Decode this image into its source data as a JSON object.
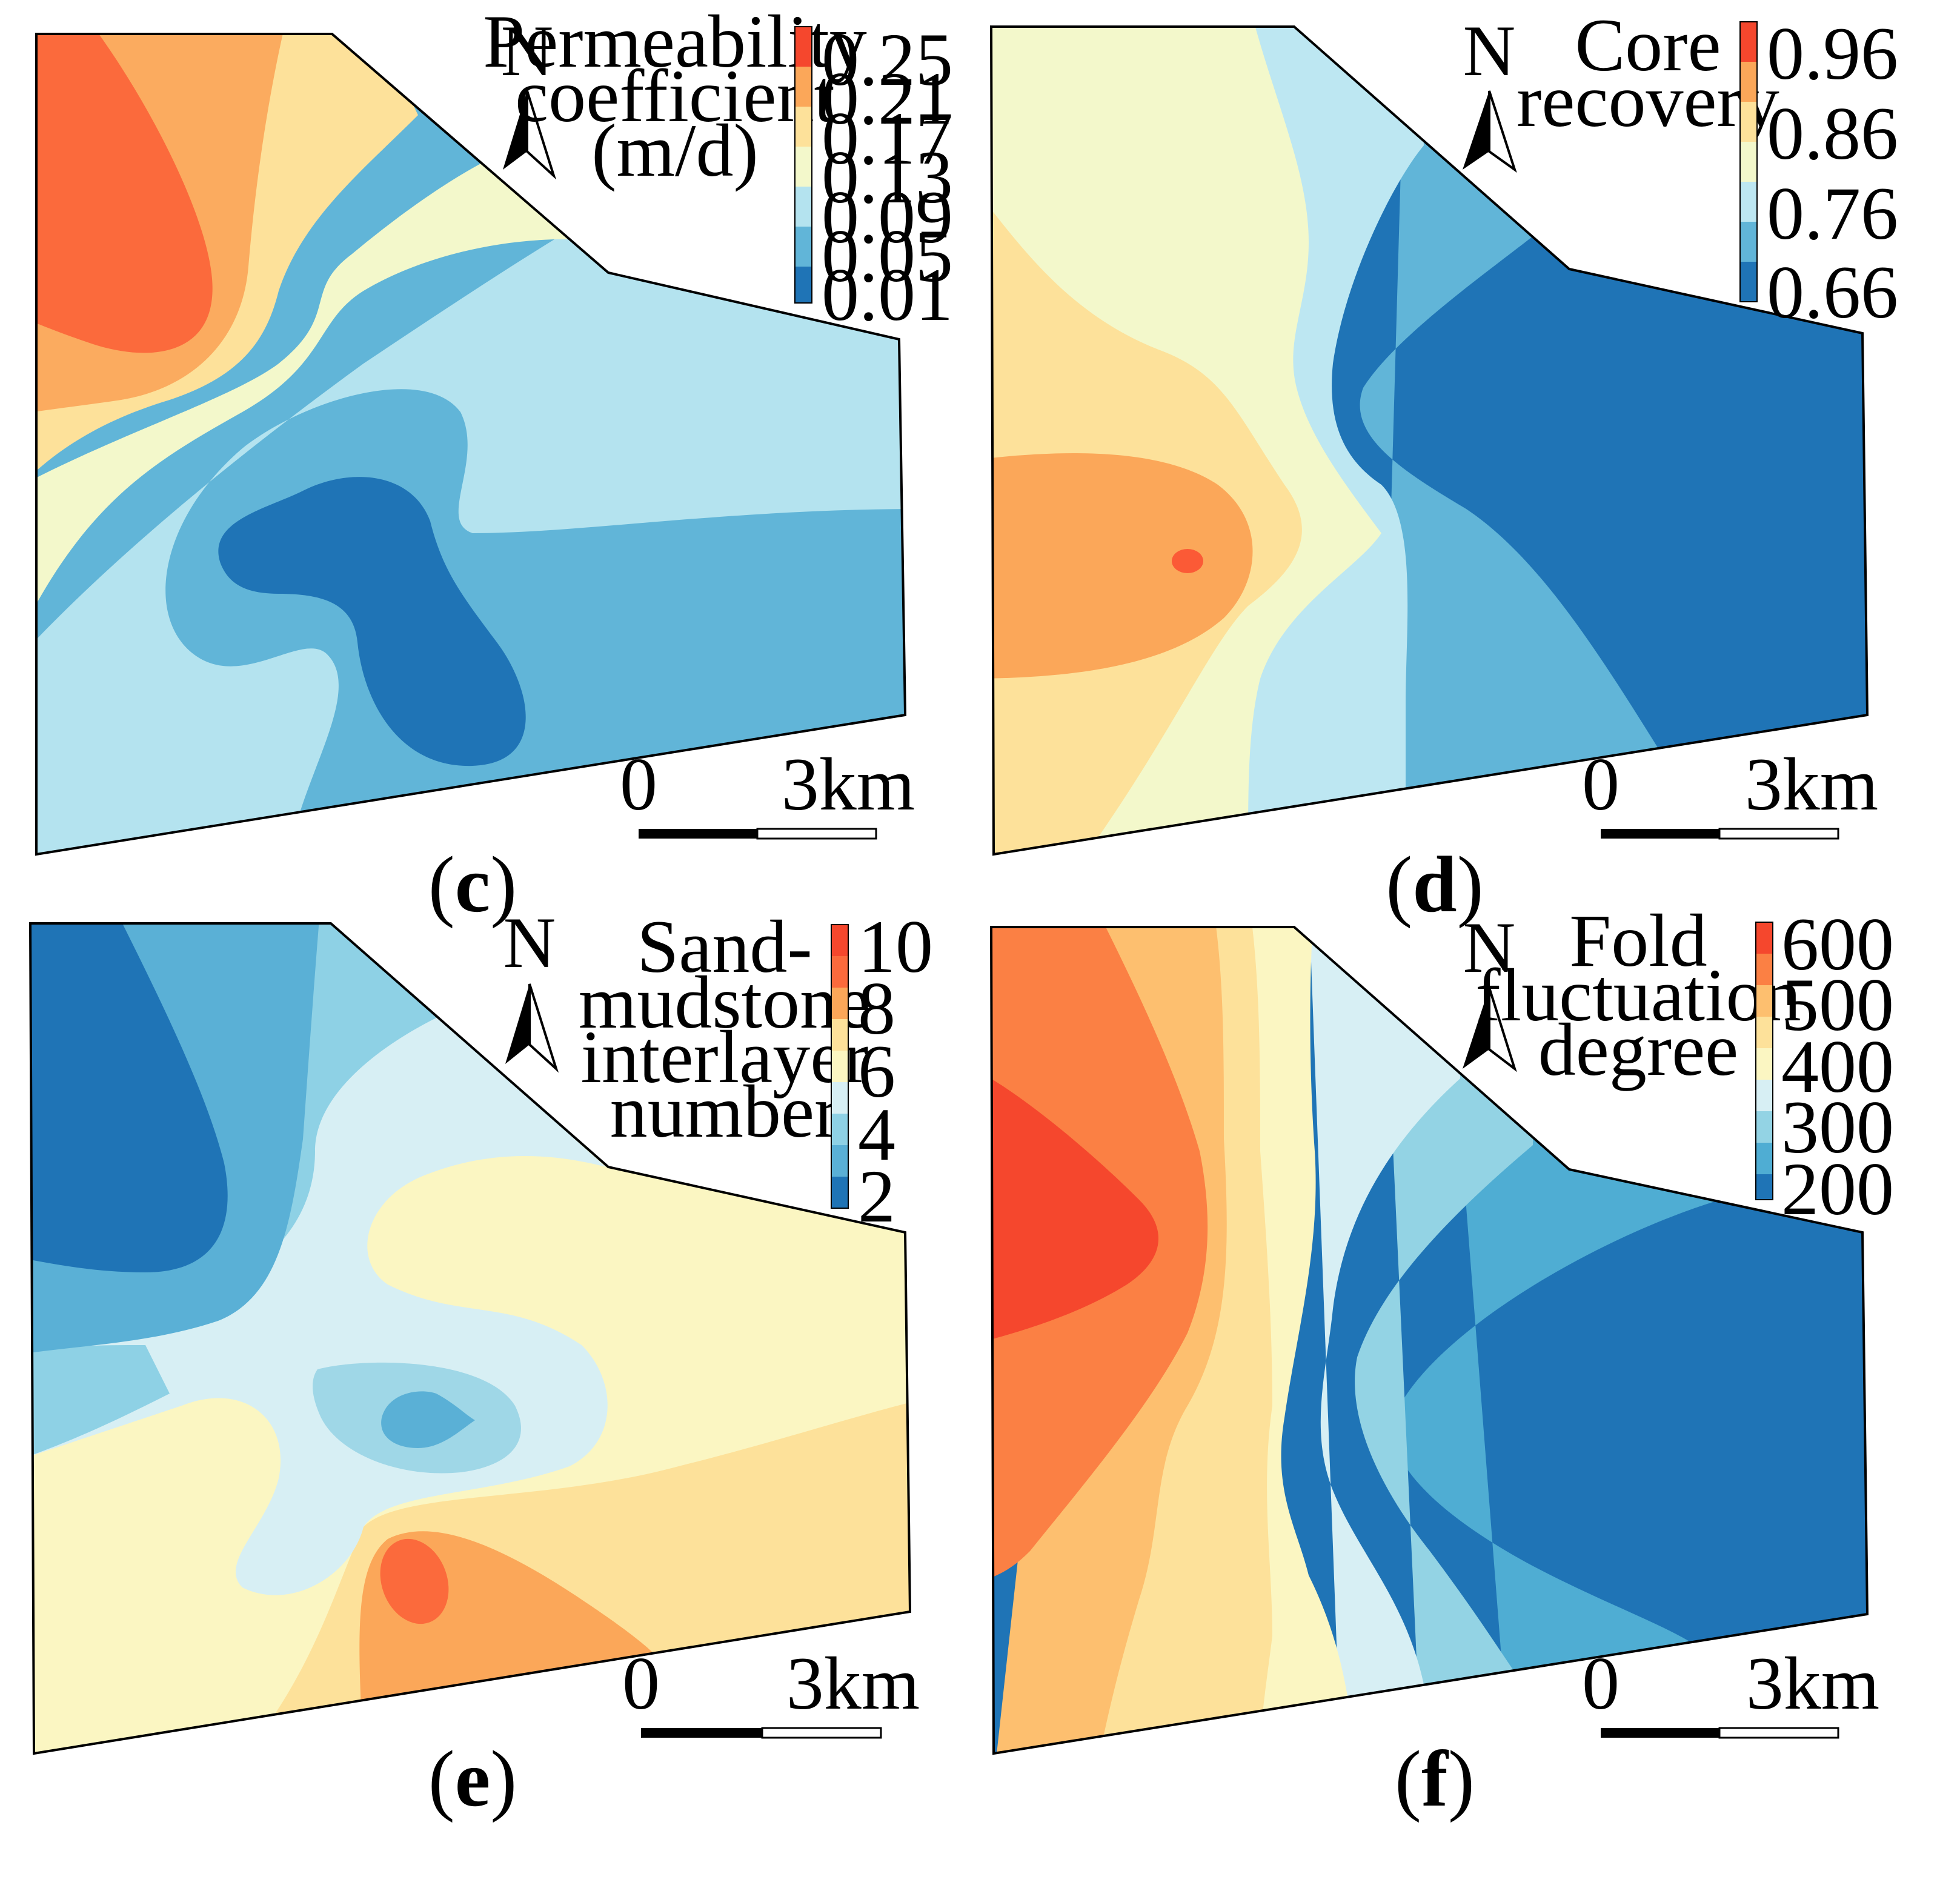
{
  "panels": [
    {
      "id": "c",
      "caption_open": "(",
      "caption_letter": "c",
      "caption_close": ")",
      "legend_title": [
        "Permeability",
        "coefficient",
        "(m/d)"
      ],
      "legend_ticks": [
        "0.25",
        "0.21",
        "0.17",
        "0.13",
        "0.09",
        "0.05",
        "0.01"
      ],
      "north_label": "N",
      "scale_start": "0",
      "scale_end": "3km"
    },
    {
      "id": "d",
      "caption_open": "(",
      "caption_letter": "d",
      "caption_close": ")",
      "legend_title": [
        "Core",
        "recovery"
      ],
      "legend_ticks": [
        "0.96",
        "0.86",
        "0.76",
        "0.66"
      ],
      "north_label": "N",
      "scale_start": "0",
      "scale_end": "3km"
    },
    {
      "id": "e",
      "caption_open": "(",
      "caption_letter": "e",
      "caption_close": ")",
      "legend_title": [
        "Sand-",
        "mudstone",
        "interlayer",
        "number"
      ],
      "legend_ticks": [
        "10",
        "8",
        "6",
        "4",
        "2"
      ],
      "north_label": "N",
      "scale_start": "0",
      "scale_end": "3km"
    },
    {
      "id": "f",
      "caption_open": "(",
      "caption_letter": "f",
      "caption_close": ")",
      "legend_title": [
        "Fold",
        "fluctuation",
        "degree"
      ],
      "legend_ticks": [
        "600",
        "500",
        "400",
        "300",
        "200"
      ],
      "north_label": "N",
      "scale_start": "0",
      "scale_end": "3km"
    }
  ],
  "colors": {
    "red": "#f5472d",
    "red_orange": "#fb6a3c",
    "orange": "#fba759",
    "light_orange": "#fdd98e",
    "yellow": "#fbf6c2",
    "pale_green_yellow": "#f3f8cb",
    "pale_blue": "#d7eff4",
    "light_blue": "#b4e1ef",
    "mid_light_blue": "#8ecfe4",
    "mid_blue": "#5ab0d6",
    "dark_blue": "#1f74b6"
  }
}
